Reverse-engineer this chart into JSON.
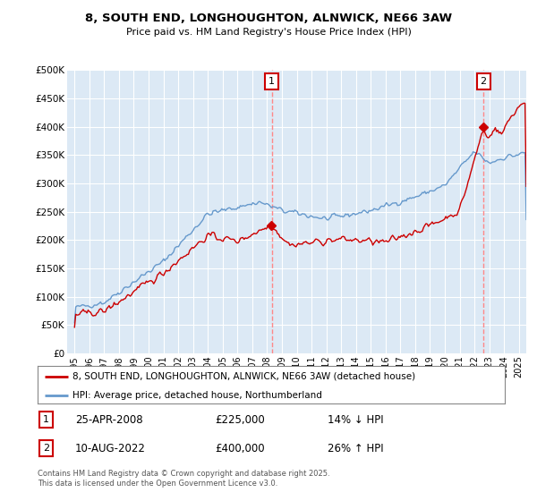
{
  "title_line1": "8, SOUTH END, LONGHOUGHTON, ALNWICK, NE66 3AW",
  "title_line2": "Price paid vs. HM Land Registry's House Price Index (HPI)",
  "background_color": "#dce9f5",
  "plot_bg_color": "#dce9f5",
  "grid_color": "#ffffff",
  "ylim": [
    0,
    500000
  ],
  "yticks": [
    0,
    50000,
    100000,
    150000,
    200000,
    250000,
    300000,
    350000,
    400000,
    450000,
    500000
  ],
  "ytick_labels": [
    "£0",
    "£50K",
    "£100K",
    "£150K",
    "£200K",
    "£250K",
    "£300K",
    "£350K",
    "£400K",
    "£450K",
    "£500K"
  ],
  "xlim_start": 1994.5,
  "xlim_end": 2025.5,
  "xticks": [
    1995,
    1996,
    1997,
    1998,
    1999,
    2000,
    2001,
    2002,
    2003,
    2004,
    2005,
    2006,
    2007,
    2008,
    2009,
    2010,
    2011,
    2012,
    2013,
    2014,
    2015,
    2016,
    2017,
    2018,
    2019,
    2020,
    2021,
    2022,
    2023,
    2024,
    2025
  ],
  "red_line_color": "#cc0000",
  "blue_line_color": "#6699cc",
  "marker1_x": 2008.32,
  "marker2_x": 2022.61,
  "legend_label1": "8, SOUTH END, LONGHOUGHTON, ALNWICK, NE66 3AW (detached house)",
  "legend_label2": "HPI: Average price, detached house, Northumberland",
  "ann1_date": "25-APR-2008",
  "ann1_price": "£225,000",
  "ann1_hpi": "14% ↓ HPI",
  "ann2_date": "10-AUG-2022",
  "ann2_price": "£400,000",
  "ann2_hpi": "26% ↑ HPI",
  "footer": "Contains HM Land Registry data © Crown copyright and database right 2025.\nThis data is licensed under the Open Government Licence v3.0."
}
